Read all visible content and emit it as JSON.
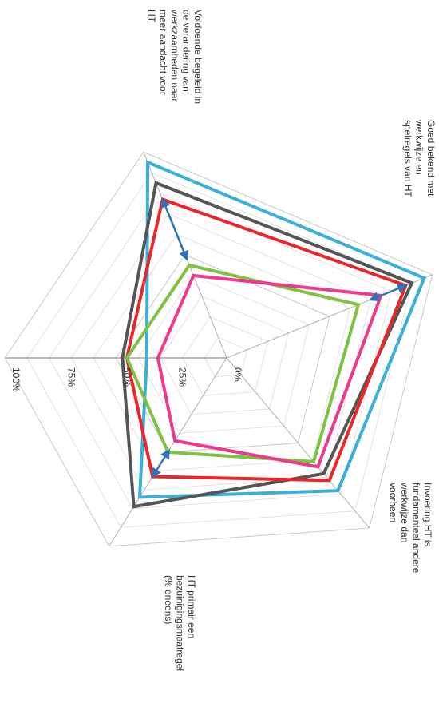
{
  "chart_data": {
    "type": "radar",
    "orientation": "rotated-90-clockwise",
    "axes": [
      "Voldoende begeleid in de verandering van werkzaamheden naar meer aandacht voor HT",
      "Goed bekend met werkwijze en spelregels van HT",
      "Invoering HT is fundamenteel andere werkwijze dan voorheen",
      "HT primair een bezuinigingsmaatregel (% oneens)",
      ""
    ],
    "axis_labels": [
      [
        "Voldoende begeleid in",
        "de verandering van",
        "werkzaamheden naar",
        "meer aandacht voor",
        "HT"
      ],
      [
        "Goed bekend met",
        "werkwijze en",
        "spelregels van HT"
      ],
      [
        "Invoering HT is",
        "fundamenteel andere",
        "werkwijze dan",
        "voorheen"
      ],
      [
        "HT primair een",
        "bezuinigingsmaatregel",
        "(% oneens)"
      ],
      []
    ],
    "ticks": [
      "0%",
      "25%",
      "50%",
      "75%",
      "100%"
    ],
    "tick_values": [
      0,
      25,
      50,
      75,
      100
    ],
    "range": [
      0,
      100
    ],
    "series": [
      {
        "color": "#3bb0d6",
        "values": [
          95,
          96,
          78,
          74,
          36
        ]
      },
      {
        "color": "#555555",
        "values": [
          85,
          90,
          68,
          79,
          47
        ]
      },
      {
        "color": "#e8262c",
        "values": [
          77,
          87,
          72,
          63,
          45
        ]
      },
      {
        "color": "#7dc242",
        "values": [
          45,
          64,
          61,
          50,
          45
        ]
      },
      {
        "color": "#ee3a8c",
        "values": [
          40,
          75,
          64,
          44,
          31
        ]
      }
    ],
    "arrows": [
      {
        "axis": 0,
        "from": 77,
        "to": 48,
        "color": "#2f73b5"
      },
      {
        "axis": 1,
        "from": 87,
        "to": 70,
        "color": "#2f73b5"
      },
      {
        "axis": 3,
        "from": 63,
        "to": 49,
        "color": "#2f73b5"
      }
    ],
    "grid": true
  }
}
